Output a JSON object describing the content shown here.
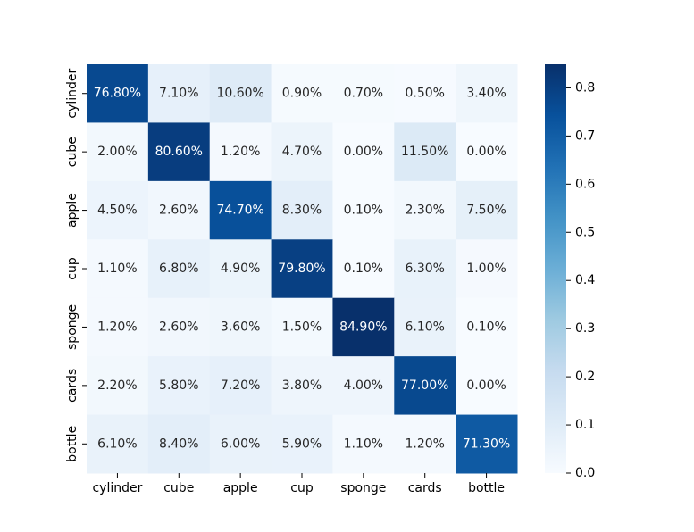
{
  "chart_data": {
    "type": "heatmap",
    "title": "",
    "xlabel": "",
    "ylabel": "",
    "x_categories": [
      "cylinder",
      "cube",
      "apple",
      "cup",
      "sponge",
      "cards",
      "bottle"
    ],
    "y_categories": [
      "cylinder",
      "cube",
      "apple",
      "cup",
      "sponge",
      "cards",
      "bottle"
    ],
    "values": [
      [
        0.768,
        0.071,
        0.106,
        0.009,
        0.007,
        0.005,
        0.034
      ],
      [
        0.02,
        0.806,
        0.012,
        0.047,
        0.0,
        0.115,
        0.0
      ],
      [
        0.045,
        0.026,
        0.747,
        0.083,
        0.001,
        0.023,
        0.075
      ],
      [
        0.011,
        0.068,
        0.049,
        0.798,
        0.001,
        0.063,
        0.01
      ],
      [
        0.012,
        0.026,
        0.036,
        0.015,
        0.849,
        0.061,
        0.001
      ],
      [
        0.022,
        0.058,
        0.072,
        0.038,
        0.04,
        0.77,
        0.0
      ],
      [
        0.061,
        0.084,
        0.06,
        0.059,
        0.011,
        0.012,
        0.713
      ]
    ],
    "cell_labels": [
      [
        "76.80%",
        "7.10%",
        "10.60%",
        "0.90%",
        "0.70%",
        "0.50%",
        "3.40%"
      ],
      [
        "2.00%",
        "80.60%",
        "1.20%",
        "4.70%",
        "0.00%",
        "11.50%",
        "0.00%"
      ],
      [
        "4.50%",
        "2.60%",
        "74.70%",
        "8.30%",
        "0.10%",
        "2.30%",
        "7.50%"
      ],
      [
        "1.10%",
        "6.80%",
        "4.90%",
        "79.80%",
        "0.10%",
        "6.30%",
        "1.00%"
      ],
      [
        "1.20%",
        "2.60%",
        "3.60%",
        "1.50%",
        "84.90%",
        "6.10%",
        "0.10%"
      ],
      [
        "2.20%",
        "5.80%",
        "7.20%",
        "3.80%",
        "4.00%",
        "77.00%",
        "0.00%"
      ],
      [
        "6.10%",
        "8.40%",
        "6.00%",
        "5.90%",
        "1.10%",
        "1.20%",
        "71.30%"
      ]
    ],
    "colormap": "Blues",
    "colorbar": {
      "vmin": 0.0,
      "vmax": 0.849,
      "ticks": [
        0.0,
        0.1,
        0.2,
        0.3,
        0.4,
        0.5,
        0.6,
        0.7,
        0.8
      ],
      "tick_labels": [
        "0.0",
        "0.1",
        "0.2",
        "0.3",
        "0.4",
        "0.5",
        "0.6",
        "0.7",
        "0.8"
      ]
    },
    "grid": false,
    "legend": "colorbar-right"
  }
}
